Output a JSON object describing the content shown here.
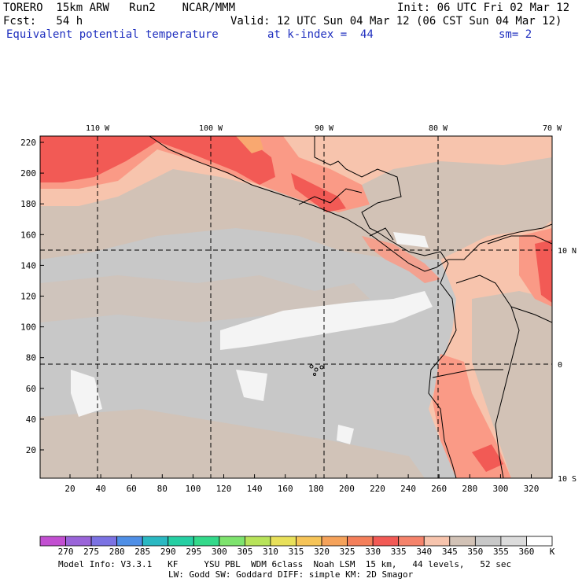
{
  "header": {
    "model": "TORERO  15km ARW   Run2    NCAR/MMM",
    "init": "Init: 06 UTC Fri 02 Mar 12",
    "fcst": "Fcst:   54 h",
    "valid": "Valid: 12 UTC Sun 04 Mar 12 (06 CST Sun 04 Mar 12)",
    "field": "Equivalent potential temperature",
    "level": "at k-index =  44",
    "smooth": "sm= 2"
  },
  "map": {
    "lon_labels": [
      "110 W",
      "100 W",
      "90 W",
      "80 W",
      "70 W"
    ],
    "lat_labels": [
      "10 N",
      "0",
      "10 S"
    ],
    "y_ticks": [
      "20",
      "40",
      "60",
      "80",
      "100",
      "120",
      "140",
      "160",
      "180",
      "200",
      "220"
    ],
    "x_ticks": [
      "20",
      "40",
      "60",
      "80",
      "100",
      "120",
      "140",
      "160",
      "180",
      "200",
      "220",
      "240",
      "260",
      "280",
      "300",
      "320"
    ],
    "colors": {
      "base_gray": "#c8c8c8",
      "tan": "#d2c2b6",
      "light_salmon": "#f7c4ad",
      "salmon": "#fa9a86",
      "red": "#f25a55",
      "white_patch": "#f4f4f4",
      "orange_patch": "#f9a870"
    }
  },
  "colorbar": {
    "labels": [
      "270",
      "275",
      "280",
      "285",
      "290",
      "295",
      "300",
      "305",
      "310",
      "315",
      "320",
      "325",
      "330",
      "335",
      "340",
      "345",
      "350",
      "355",
      "360"
    ],
    "unit": "K",
    "colors": [
      "#c24fd1",
      "#9a64d9",
      "#7b72e3",
      "#4f8fe6",
      "#2ab8c2",
      "#26cfa3",
      "#33d98a",
      "#7ee36e",
      "#b8e35a",
      "#e8e05a",
      "#f6c458",
      "#f5a25a",
      "#f47f5a",
      "#f25a55",
      "#f5836b",
      "#f7c4ad",
      "#d2c2b6",
      "#c8c8c8",
      "#dcdcdc",
      "#ffffff"
    ]
  },
  "footer": {
    "line1": "Model Info: V3.3.1   KF     YSU PBL  WDM 6class  Noah LSM  15 km,   44 levels,   52 sec",
    "line2": "LW: Godd SW: Goddard DIFF: simple KM: 2D Smagor"
  }
}
